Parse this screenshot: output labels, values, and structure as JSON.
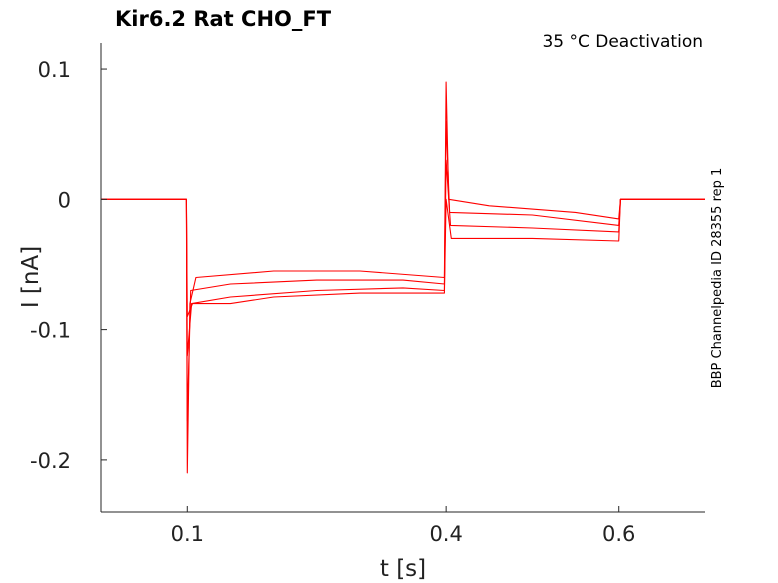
{
  "chart_data": {
    "type": "line",
    "title": "Kir6.2  Rat  CHO_FT",
    "annotation": "35 °C  Deactivation",
    "side_label": "BBP Channelpedia ID 28355 rep 1",
    "xlabel": "t [s]",
    "ylabel": "I [nA]",
    "xlim": [
      0.0,
      0.7
    ],
    "ylim": [
      -0.24,
      0.12
    ],
    "xticks": [
      {
        "value": 0.1,
        "label": "0.1"
      },
      {
        "value": 0.4,
        "label": "0.4"
      },
      {
        "value": 0.6,
        "label": "0.6"
      }
    ],
    "yticks": [
      {
        "value": 0.1,
        "label": "0.1"
      },
      {
        "value": 0,
        "label": "0"
      },
      {
        "value": -0.1,
        "label": "-0.1"
      },
      {
        "value": -0.2,
        "label": "-0.2"
      }
    ],
    "grid": false,
    "color": "#ff0000",
    "series": [
      {
        "values": [
          [
            0.0,
            0.0
          ],
          [
            0.05,
            0.0
          ],
          [
            0.085,
            0.0
          ],
          [
            0.099,
            0.0
          ],
          [
            0.1,
            -0.21
          ],
          [
            0.103,
            -0.08
          ],
          [
            0.11,
            -0.06
          ],
          [
            0.2,
            -0.055
          ],
          [
            0.3,
            -0.055
          ],
          [
            0.398,
            -0.06
          ],
          [
            0.4,
            0.09
          ],
          [
            0.403,
            0.0
          ],
          [
            0.45,
            -0.005
          ],
          [
            0.55,
            -0.01
          ],
          [
            0.6,
            -0.015
          ],
          [
            0.602,
            0.0
          ],
          [
            0.7,
            0.0
          ]
        ]
      },
      {
        "values": [
          [
            0.0,
            0.0
          ],
          [
            0.099,
            0.0
          ],
          [
            0.1,
            -0.17
          ],
          [
            0.104,
            -0.07
          ],
          [
            0.15,
            -0.065
          ],
          [
            0.25,
            -0.062
          ],
          [
            0.35,
            -0.062
          ],
          [
            0.398,
            -0.065
          ],
          [
            0.4,
            0.06
          ],
          [
            0.404,
            -0.01
          ],
          [
            0.5,
            -0.012
          ],
          [
            0.6,
            -0.02
          ],
          [
            0.602,
            0.0
          ],
          [
            0.7,
            0.0
          ]
        ]
      },
      {
        "values": [
          [
            0.0,
            0.0
          ],
          [
            0.099,
            0.0
          ],
          [
            0.1,
            -0.12
          ],
          [
            0.105,
            -0.08
          ],
          [
            0.15,
            -0.075
          ],
          [
            0.25,
            -0.07
          ],
          [
            0.35,
            -0.068
          ],
          [
            0.398,
            -0.07
          ],
          [
            0.4,
            0.03
          ],
          [
            0.405,
            -0.02
          ],
          [
            0.5,
            -0.022
          ],
          [
            0.6,
            -0.025
          ],
          [
            0.602,
            0.0
          ],
          [
            0.7,
            0.0
          ]
        ]
      },
      {
        "values": [
          [
            0.0,
            0.0
          ],
          [
            0.099,
            0.0
          ],
          [
            0.1,
            -0.09
          ],
          [
            0.106,
            -0.08
          ],
          [
            0.15,
            -0.08
          ],
          [
            0.2,
            -0.075
          ],
          [
            0.3,
            -0.072
          ],
          [
            0.398,
            -0.072
          ],
          [
            0.4,
            0.0
          ],
          [
            0.406,
            -0.03
          ],
          [
            0.5,
            -0.03
          ],
          [
            0.6,
            -0.032
          ],
          [
            0.602,
            0.0
          ],
          [
            0.7,
            0.0
          ]
        ]
      }
    ]
  }
}
